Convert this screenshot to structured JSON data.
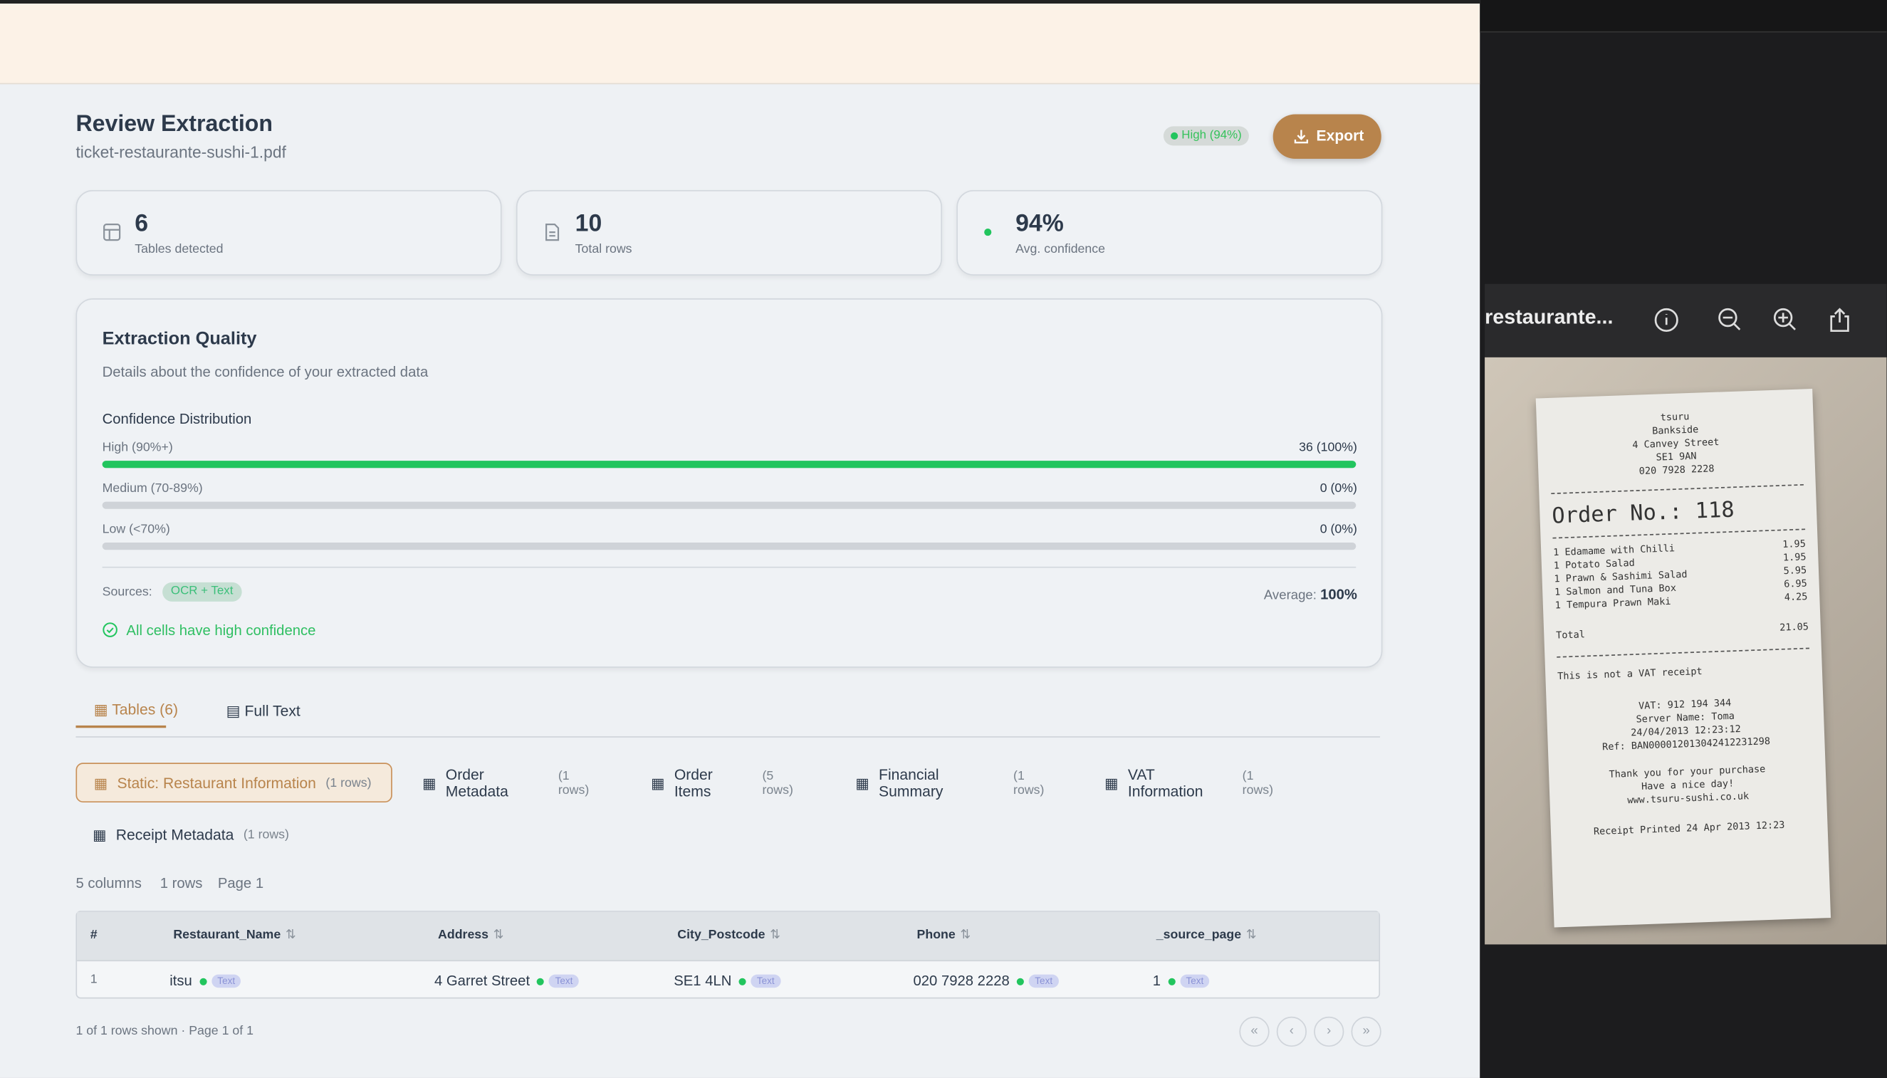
{
  "header": {
    "title": "Review Extraction",
    "filename": "ticket-restaurante-sushi-1.pdf",
    "badge": "High (94%)",
    "export": "Export"
  },
  "stats": [
    {
      "value": "6",
      "label": "Tables detected"
    },
    {
      "value": "10",
      "label": "Total rows"
    },
    {
      "value": "94%",
      "label": "Avg. confidence"
    }
  ],
  "quality": {
    "title": "Extraction Quality",
    "subtitle": "Details about the confidence of your extracted data",
    "distribution_title": "Confidence Distribution",
    "levels": [
      {
        "label": "High (90%+)",
        "count": "36 (100%)",
        "percent": 100
      },
      {
        "label": "Medium (70-89%)",
        "count": "0 (0%)",
        "percent": 0
      },
      {
        "label": "Low (<70%)",
        "count": "0 (0%)",
        "percent": 0
      }
    ],
    "sources_label": "Sources:",
    "source": "OCR + Text",
    "average_label": "Average:",
    "average": "100%",
    "status": "All cells have high confidence"
  },
  "tabs": [
    "Tables (6)",
    "Full Text"
  ],
  "tables": [
    {
      "name": "Static: Restaurant Information",
      "rows": "(1 rows)"
    },
    {
      "name": "Order Metadata",
      "rows": "(1 rows)"
    },
    {
      "name": "Order Items",
      "rows": "(5 rows)"
    },
    {
      "name": "Financial Summary",
      "rows": "(1 rows)"
    },
    {
      "name": "VAT Information",
      "rows": "(1 rows)"
    },
    {
      "name": "Receipt Metadata",
      "rows": "(1 rows)"
    }
  ],
  "summary": {
    "columns": "5 columns",
    "rows": "1 rows",
    "page": "Page 1"
  },
  "table": {
    "headers": [
      "#",
      "Restaurant_Name",
      "Address",
      "City_Postcode",
      "Phone",
      "_source_page"
    ],
    "rows": [
      [
        "1",
        "itsu",
        "4 Garret Street",
        "SE1 4LN",
        "020 7928 2228",
        "1"
      ]
    ],
    "tag": "Text"
  },
  "footer": "1 of 1 rows shown · Page 1 of 1",
  "viewer": {
    "title": "restaurante...",
    "receipt": {
      "header": [
        "tsuru",
        "Bankside",
        "4 Canvey Street",
        "SE1 9AN",
        "020 7928 2228"
      ],
      "order": "Order No.: 118",
      "items": [
        [
          "1 Edamame with Chilli",
          "1.95"
        ],
        [
          "1 Potato Salad",
          "1.95"
        ],
        [
          "1 Prawn & Sashimi Salad",
          "5.95"
        ],
        [
          "1 Salmon and Tuna Box",
          "6.95"
        ],
        [
          "1 Tempura Prawn Maki",
          "4.25"
        ]
      ],
      "total": [
        "Total",
        "21.05"
      ],
      "note": "This is not a VAT receipt",
      "footer": [
        "VAT: 912 194 344",
        "Server Name: Toma",
        "24/04/2013 12:23:12",
        "Ref: BAN000012013042412231298",
        "Thank you for your purchase",
        "Have a nice day!",
        "www.tsuru-sushi.co.uk"
      ],
      "printed": "Receipt Printed 24 Apr 2013 12:23"
    }
  }
}
